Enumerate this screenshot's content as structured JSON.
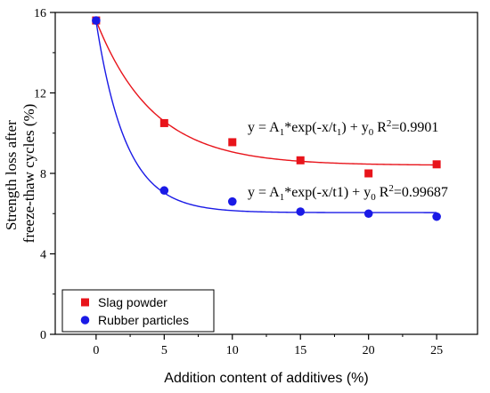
{
  "chart_data": {
    "type": "scatter",
    "xlabel": "Addition content of additives (%)",
    "ylabel_lines": [
      "Strength loss after",
      "freeze-thaw cycles (%)"
    ],
    "xlim": [
      -3,
      28
    ],
    "ylim": [
      0,
      16
    ],
    "xticks": [
      0,
      5,
      10,
      15,
      20,
      25
    ],
    "yticks": [
      0,
      4,
      8,
      12,
      16
    ],
    "legend_position": "bottom-left",
    "series": [
      {
        "name": "Slag powder",
        "marker": "square",
        "color": "#e8141b",
        "x": [
          0,
          5,
          10,
          15,
          20,
          25
        ],
        "y": [
          15.6,
          10.5,
          9.55,
          8.65,
          8.0,
          8.45
        ],
        "fit": {
          "A1": 7.2,
          "t1": 4.2,
          "y0": 8.4
        }
      },
      {
        "name": "Rubber particles",
        "marker": "circle",
        "color": "#1a1ae6",
        "x": [
          0,
          5,
          10,
          15,
          20,
          25
        ],
        "y": [
          15.6,
          7.15,
          6.6,
          6.1,
          6.0,
          5.85
        ],
        "fit": {
          "A1": 9.5,
          "t1": 2.2,
          "y0": 6.05
        }
      }
    ],
    "annotations": [
      {
        "base": "y = A",
        "sub1": "1",
        "mid": "*exp(-x/t",
        "sub2": "1",
        "tail": ") + y",
        "sub3": "0",
        "r": "R",
        "sup": "2",
        "rval": "=0.9901"
      },
      {
        "base": "y = A",
        "sub1": "1",
        "mid": "*exp(-x/t1) + y",
        "sub2": "",
        "tail": "",
        "sub3": "0",
        "r": "R",
        "sup": "2",
        "rval": "=0.99687"
      }
    ]
  }
}
